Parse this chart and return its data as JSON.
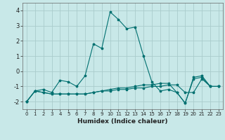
{
  "title": "",
  "xlabel": "Humidex (Indice chaleur)",
  "ylabel": "",
  "background_color": "#c8e8e8",
  "grid_color": "#aacccc",
  "line_color": "#007070",
  "xlim": [
    -0.5,
    23.5
  ],
  "ylim": [
    -2.5,
    4.5
  ],
  "xticks": [
    0,
    1,
    2,
    3,
    4,
    5,
    6,
    7,
    8,
    9,
    10,
    11,
    12,
    13,
    14,
    15,
    16,
    17,
    18,
    19,
    20,
    21,
    22,
    23
  ],
  "yticks": [
    -2,
    -1,
    0,
    1,
    2,
    3,
    4
  ],
  "series": [
    {
      "x": [
        0,
        1,
        2,
        3,
        4,
        5,
        6,
        7,
        8,
        9,
        10,
        11,
        12,
        13,
        14,
        15,
        16,
        17,
        18,
        19,
        20,
        21,
        22,
        23
      ],
      "y": [
        -2.0,
        -1.3,
        -1.2,
        -1.4,
        -0.6,
        -0.7,
        -1.0,
        -0.3,
        1.8,
        1.5,
        3.9,
        3.4,
        2.8,
        2.9,
        1.0,
        -0.7,
        -1.3,
        -1.2,
        -1.4,
        -2.1,
        -0.4,
        -0.3,
        -1.0,
        -1.0
      ]
    },
    {
      "x": [
        0,
        1,
        2,
        3,
        4,
        5,
        6,
        7,
        8,
        9,
        10,
        11,
        12,
        13,
        14,
        15,
        16,
        17,
        18,
        19,
        20,
        21,
        22,
        23
      ],
      "y": [
        -2.0,
        -1.3,
        -1.4,
        -1.5,
        -1.5,
        -1.5,
        -1.5,
        -1.5,
        -1.4,
        -1.3,
        -1.2,
        -1.1,
        -1.1,
        -1.0,
        -0.9,
        -0.9,
        -0.8,
        -0.8,
        -1.4,
        -2.1,
        -0.5,
        -0.4,
        -1.0,
        -1.0
      ]
    },
    {
      "x": [
        0,
        1,
        2,
        3,
        4,
        5,
        6,
        7,
        8,
        9,
        10,
        11,
        12,
        13,
        14,
        15,
        16,
        17,
        18,
        19,
        20,
        21,
        22,
        23
      ],
      "y": [
        -2.0,
        -1.3,
        -1.4,
        -1.5,
        -1.5,
        -1.5,
        -1.5,
        -1.5,
        -1.4,
        -1.3,
        -1.3,
        -1.2,
        -1.2,
        -1.1,
        -1.1,
        -1.0,
        -1.0,
        -0.9,
        -0.9,
        -1.4,
        -1.4,
        -0.5,
        -1.0,
        -1.0
      ]
    }
  ],
  "figsize": [
    3.2,
    2.0
  ],
  "dpi": 100
}
